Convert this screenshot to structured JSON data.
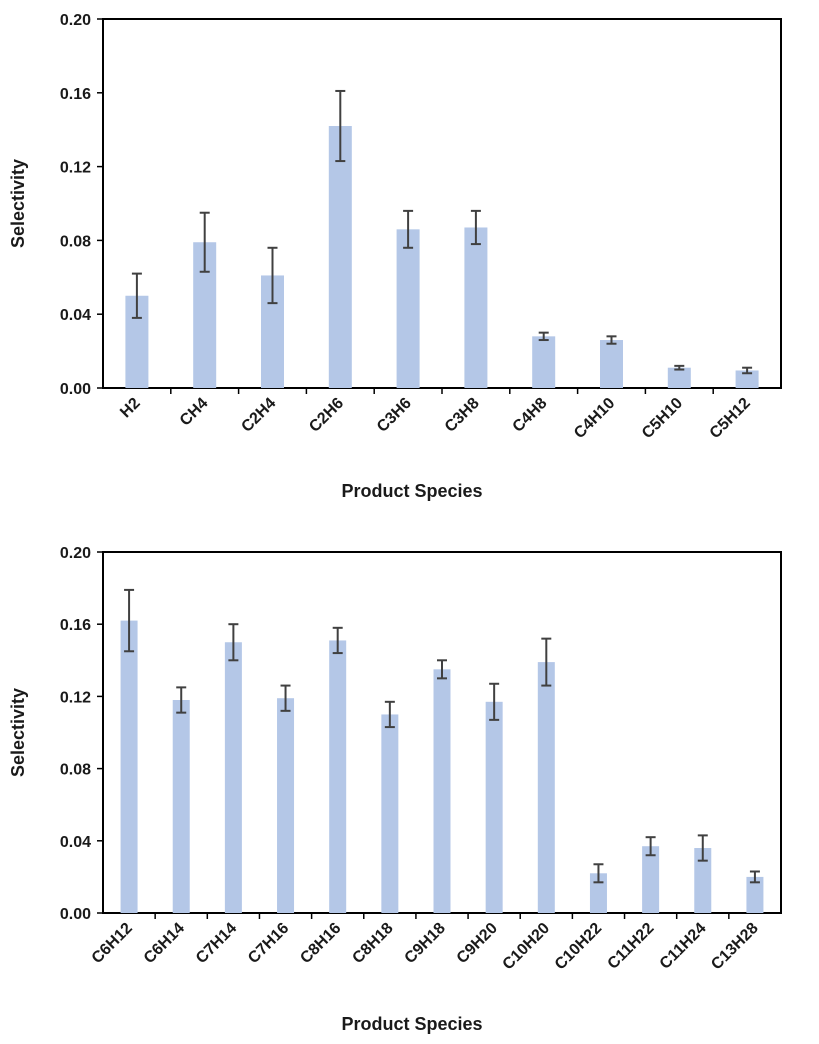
{
  "chart_data": [
    {
      "type": "bar",
      "title": "",
      "xlabel": "Product Species",
      "ylabel": "Selectivity",
      "ylim": [
        0,
        0.2
      ],
      "yticks": [
        "0.00",
        "0.04",
        "0.08",
        "0.12",
        "0.16",
        "0.20"
      ],
      "categories": [
        "H2",
        "CH4",
        "C2H4",
        "C2H6",
        "C3H6",
        "C3H8",
        "C4H8",
        "C4H10",
        "C5H10",
        "C5H12"
      ],
      "values": [
        0.05,
        0.079,
        0.061,
        0.142,
        0.086,
        0.087,
        0.028,
        0.026,
        0.011,
        0.0095
      ],
      "errors": [
        0.012,
        0.016,
        0.015,
        0.019,
        0.01,
        0.009,
        0.002,
        0.002,
        0.001,
        0.0015
      ],
      "bar_color": "#b4c7e7",
      "error_color": "#404040"
    },
    {
      "type": "bar",
      "title": "",
      "xlabel": "Product Species",
      "ylabel": "Selectivity",
      "ylim": [
        0,
        0.2
      ],
      "yticks": [
        "0.00",
        "0.04",
        "0.08",
        "0.12",
        "0.16",
        "0.20"
      ],
      "categories": [
        "C6H12",
        "C6H14",
        "C7H14",
        "C7H16",
        "C8H16",
        "C8H18",
        "C9H18",
        "C9H20",
        "C10H20",
        "C10H22",
        "C11H22",
        "C11H24",
        "C13H28"
      ],
      "values": [
        0.162,
        0.118,
        0.15,
        0.119,
        0.151,
        0.11,
        0.135,
        0.117,
        0.139,
        0.022,
        0.037,
        0.036,
        0.02
      ],
      "errors": [
        0.017,
        0.007,
        0.01,
        0.007,
        0.007,
        0.007,
        0.005,
        0.01,
        0.013,
        0.005,
        0.005,
        0.007,
        0.003
      ],
      "bar_color": "#b4c7e7",
      "error_color": "#404040"
    }
  ]
}
